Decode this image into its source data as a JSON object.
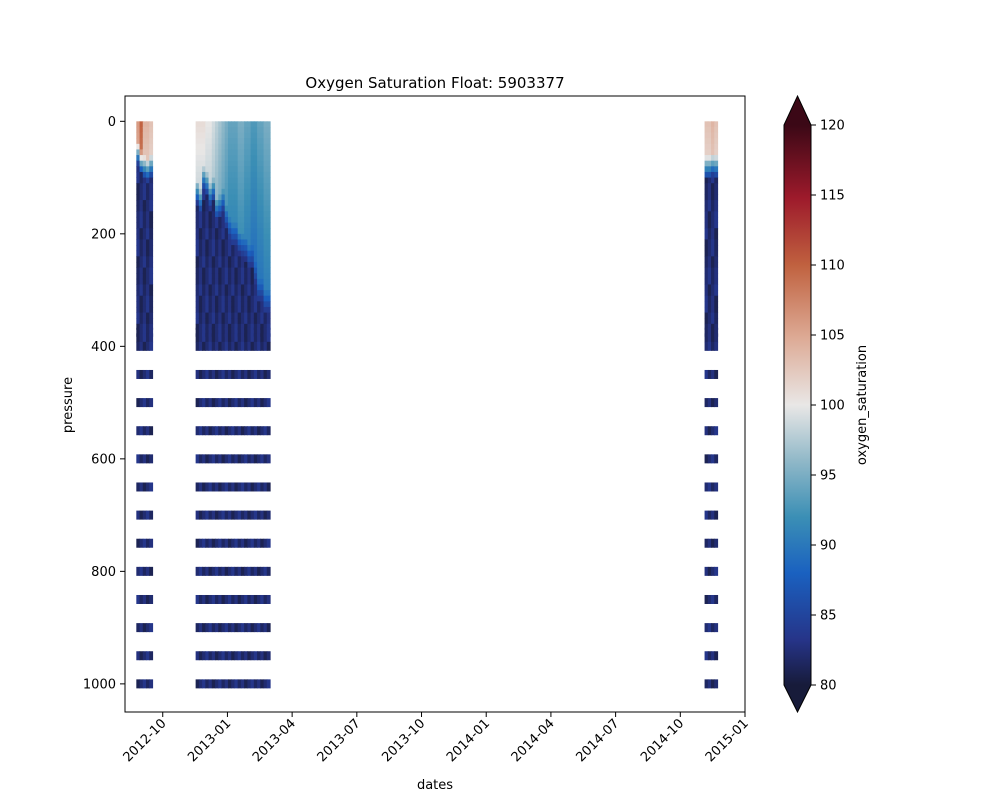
{
  "chart_data": {
    "type": "heatmap",
    "title": "Oxygen Saturation Float: 5903377",
    "xlabel": "dates",
    "ylabel": "pressure",
    "colorbar_label": "oxygen_saturation",
    "x_ticks": [
      "2012-10",
      "2013-01",
      "2013-04",
      "2013-07",
      "2013-10",
      "2014-01",
      "2014-04",
      "2014-07",
      "2014-10",
      "2015-01"
    ],
    "x_tick_months": [
      0,
      3,
      6,
      9,
      12,
      15,
      18,
      21,
      24,
      27
    ],
    "xlim_months": [
      -1.75,
      27
    ],
    "y_ticks": [
      0,
      200,
      400,
      600,
      800,
      1000
    ],
    "ylim": [
      1050,
      -45
    ],
    "colorbar_ticks": [
      80,
      85,
      90,
      95,
      100,
      105,
      110,
      115,
      120
    ],
    "colorbar_range": [
      80,
      120
    ],
    "colorbar_extend": "both",
    "colormap_stops": [
      {
        "v": 0.0,
        "c": "#171b3a"
      },
      {
        "v": 0.08,
        "c": "#263488"
      },
      {
        "v": 0.2,
        "c": "#1a61c0"
      },
      {
        "v": 0.3,
        "c": "#3b8fb5"
      },
      {
        "v": 0.4,
        "c": "#90b8c8"
      },
      {
        "v": 0.5,
        "c": "#e9e7e6"
      },
      {
        "v": 0.62,
        "c": "#ddaa95"
      },
      {
        "v": 0.75,
        "c": "#c0613f"
      },
      {
        "v": 0.87,
        "c": "#9d1a2b"
      },
      {
        "v": 1.0,
        "c": "#3b0816"
      }
    ],
    "profile_dates_months": [
      -1.15,
      -1.0,
      -0.85,
      -0.7,
      -0.55,
      1.6,
      1.75,
      1.9,
      2.05,
      2.2,
      2.35,
      2.5,
      2.65,
      2.8,
      2.95,
      3.1,
      3.25,
      3.4,
      3.55,
      3.7,
      3.85,
      4.0,
      4.15,
      4.3,
      4.45,
      4.6,
      4.75,
      4.9,
      25.2,
      25.35,
      25.5,
      25.65
    ],
    "surface_saturation": [
      106,
      110,
      104,
      104,
      103,
      101,
      101,
      101,
      100,
      100,
      99,
      98,
      97,
      96,
      95,
      94,
      94,
      94,
      95,
      95,
      94,
      94,
      93,
      93,
      94,
      94,
      95,
      95,
      103,
      103,
      104,
      103
    ],
    "mixed_layer_depth": [
      35,
      50,
      60,
      65,
      58,
      105,
      120,
      80,
      90,
      110,
      100,
      135,
      130,
      120,
      150,
      170,
      180,
      180,
      195,
      200,
      205,
      220,
      220,
      250,
      280,
      280,
      300,
      300,
      60,
      60,
      55,
      58
    ],
    "continuous_depth_max": 370,
    "discrete_levels": [
      375,
      385,
      400,
      450,
      500,
      550,
      600,
      650,
      700,
      750,
      800,
      850,
      900,
      950,
      1000
    ],
    "bottom_saturation": 82
  }
}
